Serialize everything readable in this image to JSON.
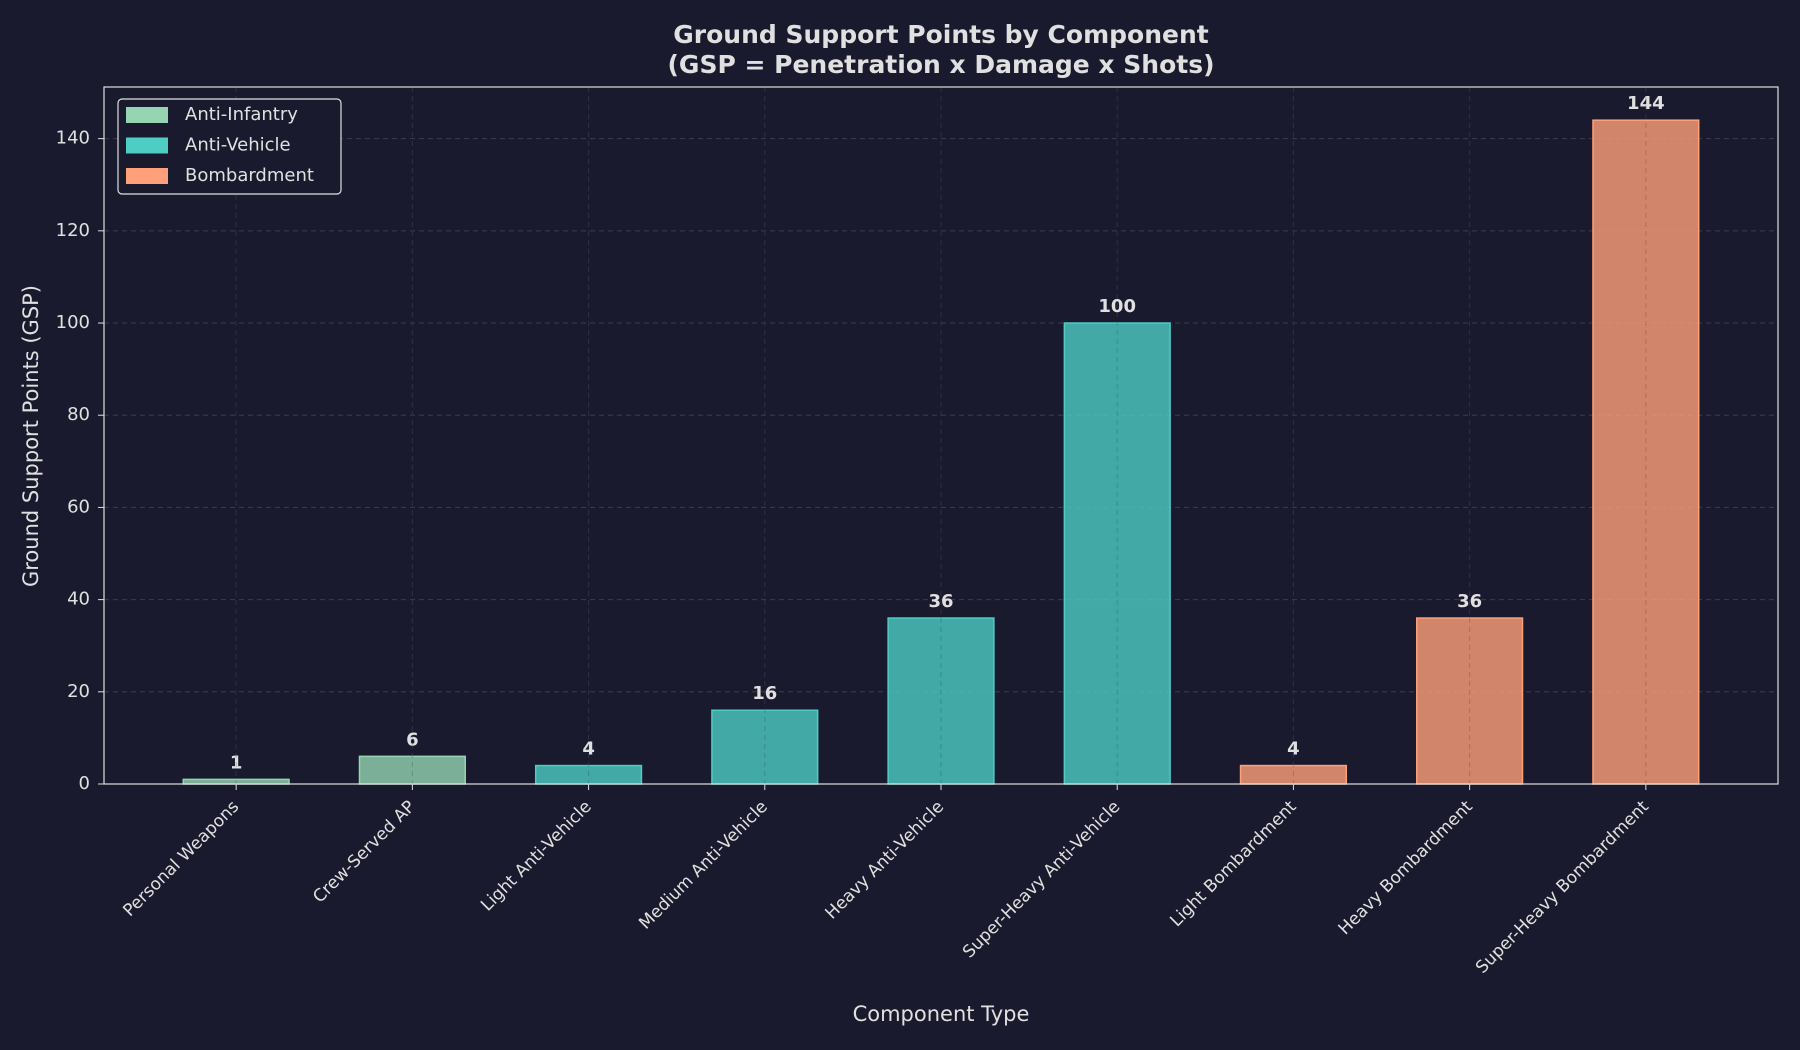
{
  "chart_data": {
    "type": "bar",
    "title": "Ground Support Points by Component",
    "subtitle": "(GSP = Penetration x Damage x Shots)",
    "x_label": "Component Type",
    "y_label": "Ground Support Points (GSP)",
    "categories": [
      "Personal Weapons",
      "Crew-Served AP",
      "Light Anti-Vehicle",
      "Medium Anti-Vehicle",
      "Heavy Anti-Vehicle",
      "Super-Heavy Anti-Vehicle",
      "Light Bombardment",
      "Heavy Bombardment",
      "Super-Heavy Bombardment"
    ],
    "series": [
      {
        "name": "Anti-Infantry",
        "color": "#95d5b2",
        "values": [
          1,
          6,
          null,
          null,
          null,
          null,
          null,
          null,
          null
        ]
      },
      {
        "name": "Anti-Vehicle",
        "color": "#4ecdc4",
        "values": [
          null,
          null,
          4,
          16,
          36,
          100,
          null,
          null,
          null
        ]
      },
      {
        "name": "Bombardment",
        "color": "#ffa07a",
        "values": [
          null,
          null,
          null,
          null,
          null,
          null,
          4,
          36,
          144
        ]
      }
    ],
    "ylim": [
      0,
      151.2
    ],
    "yticks": [
      0,
      20,
      40,
      60,
      80,
      100,
      120,
      140
    ],
    "grid": true,
    "legend": "upper left"
  }
}
